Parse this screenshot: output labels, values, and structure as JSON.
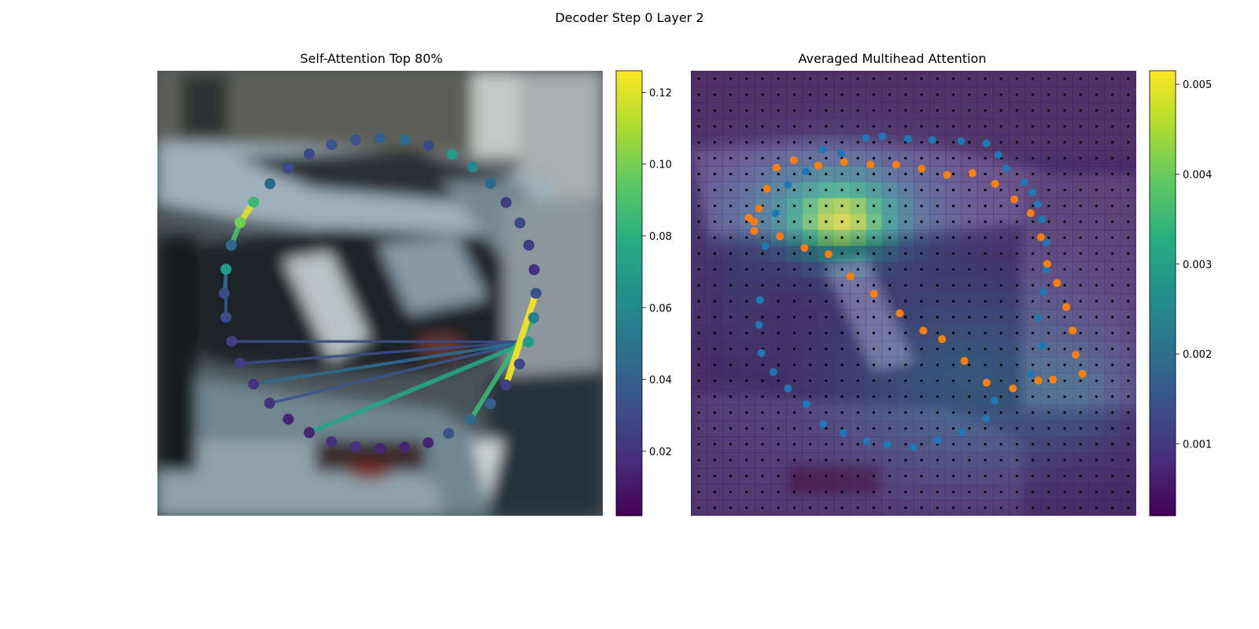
{
  "figure": {
    "title": "Decoder Step 0 Layer 2"
  },
  "chart_data": [
    {
      "type": "scatter",
      "title": "Self-Attention Top 80%",
      "background": "blurred photo of parked cars",
      "colormap": "viridis",
      "colorbar": {
        "min": 0.002,
        "max": 0.126,
        "ticks": [
          0.02,
          0.04,
          0.06,
          0.08,
          0.1,
          0.12
        ],
        "tick_labels": [
          "0.02",
          "0.04",
          "0.06",
          "0.08",
          "0.10",
          "0.12"
        ]
      },
      "axes": {
        "x_range": [
          0,
          1
        ],
        "y_range": [
          0,
          1
        ],
        "axis_visible": false
      },
      "points": [
        {
          "x": 0.5,
          "y": 0.151,
          "v": 0.04
        },
        {
          "x": 0.556,
          "y": 0.155,
          "v": 0.045
        },
        {
          "x": 0.609,
          "y": 0.168,
          "v": 0.03
        },
        {
          "x": 0.662,
          "y": 0.188,
          "v": 0.07
        },
        {
          "x": 0.708,
          "y": 0.216,
          "v": 0.06
        },
        {
          "x": 0.748,
          "y": 0.253,
          "v": 0.045
        },
        {
          "x": 0.783,
          "y": 0.296,
          "v": 0.025
        },
        {
          "x": 0.814,
          "y": 0.342,
          "v": 0.03
        },
        {
          "x": 0.834,
          "y": 0.392,
          "v": 0.025
        },
        {
          "x": 0.846,
          "y": 0.447,
          "v": 0.02
        },
        {
          "x": 0.85,
          "y": 0.5,
          "v": 0.035
        },
        {
          "x": 0.845,
          "y": 0.555,
          "v": 0.055
        },
        {
          "x": 0.833,
          "y": 0.609,
          "v": 0.07
        },
        {
          "x": 0.813,
          "y": 0.659,
          "v": 0.03
        },
        {
          "x": 0.783,
          "y": 0.706,
          "v": 0.025
        },
        {
          "x": 0.748,
          "y": 0.748,
          "v": 0.04
        },
        {
          "x": 0.703,
          "y": 0.784,
          "v": 0.045
        },
        {
          "x": 0.654,
          "y": 0.815,
          "v": 0.035
        },
        {
          "x": 0.608,
          "y": 0.836,
          "v": 0.015
        },
        {
          "x": 0.555,
          "y": 0.846,
          "v": 0.015
        },
        {
          "x": 0.5,
          "y": 0.848,
          "v": 0.015
        },
        {
          "x": 0.445,
          "y": 0.845,
          "v": 0.02
        },
        {
          "x": 0.391,
          "y": 0.834,
          "v": 0.02
        },
        {
          "x": 0.341,
          "y": 0.813,
          "v": 0.015
        },
        {
          "x": 0.294,
          "y": 0.783,
          "v": 0.015
        },
        {
          "x": 0.252,
          "y": 0.747,
          "v": 0.02
        },
        {
          "x": 0.216,
          "y": 0.704,
          "v": 0.02
        },
        {
          "x": 0.186,
          "y": 0.658,
          "v": 0.025
        },
        {
          "x": 0.167,
          "y": 0.608,
          "v": 0.025
        },
        {
          "x": 0.154,
          "y": 0.554,
          "v": 0.03
        },
        {
          "x": 0.15,
          "y": 0.5,
          "v": 0.03
        },
        {
          "x": 0.154,
          "y": 0.446,
          "v": 0.07
        },
        {
          "x": 0.166,
          "y": 0.392,
          "v": 0.045
        },
        {
          "x": 0.186,
          "y": 0.341,
          "v": 0.1
        },
        {
          "x": 0.216,
          "y": 0.295,
          "v": 0.085
        },
        {
          "x": 0.253,
          "y": 0.254,
          "v": 0.045
        },
        {
          "x": 0.293,
          "y": 0.218,
          "v": 0.03
        },
        {
          "x": 0.341,
          "y": 0.187,
          "v": 0.03
        },
        {
          "x": 0.391,
          "y": 0.166,
          "v": 0.035
        },
        {
          "x": 0.445,
          "y": 0.155,
          "v": 0.035
        }
      ],
      "links": [
        {
          "from": 10,
          "to": 14,
          "v": 0.125
        },
        {
          "from": 11,
          "to": 16,
          "v": 0.085
        },
        {
          "from": 12,
          "to": 23,
          "v": 0.075
        },
        {
          "from": 12,
          "to": 26,
          "v": 0.045
        },
        {
          "from": 12,
          "to": 25,
          "v": 0.035
        },
        {
          "from": 12,
          "to": 27,
          "v": 0.03
        },
        {
          "from": 12,
          "to": 28,
          "v": 0.03
        },
        {
          "from": 33,
          "to": 34,
          "v": 0.12
        },
        {
          "from": 33,
          "to": 32,
          "v": 0.09
        },
        {
          "from": 31,
          "to": 30,
          "v": 0.045
        },
        {
          "from": 31,
          "to": 29,
          "v": 0.04
        }
      ]
    },
    {
      "type": "heatmap",
      "title": "Averaged Multihead Attention",
      "background": "blurred photo of parked cars",
      "colormap": "viridis",
      "colorbar": {
        "min": 0.0002,
        "max": 0.00515,
        "ticks": [
          0.001,
          0.002,
          0.003,
          0.004,
          0.005
        ],
        "tick_labels": [
          "0.001",
          "0.002",
          "0.003",
          "0.004",
          "0.005"
        ]
      },
      "grid": {
        "rows": 28,
        "cols": 28
      },
      "hotspots": [
        {
          "cx": 0.34,
          "cy": 0.34,
          "rx": 0.11,
          "ry": 0.08,
          "a": 0.0031
        },
        {
          "cx": 0.3,
          "cy": 0.3,
          "rx": 0.22,
          "ry": 0.12,
          "a": 0.0016
        },
        {
          "cx": 0.64,
          "cy": 0.7,
          "rx": 0.3,
          "ry": 0.2,
          "a": 0.0011
        },
        {
          "cx": 0.88,
          "cy": 0.72,
          "rx": 0.1,
          "ry": 0.1,
          "a": 0.0006
        },
        {
          "cx": 0.1,
          "cy": 0.52,
          "rx": 0.08,
          "ry": 0.18,
          "a": 0.0003
        },
        {
          "cx": 0.5,
          "cy": 0.52,
          "rx": 0.5,
          "ry": 0.4,
          "a": 0.0004
        }
      ],
      "series": [
        {
          "color": "#1f77b4",
          "points": [
            [
              0.43,
              0.147
            ],
            [
              0.488,
              0.153
            ],
            [
              0.542,
              0.155
            ],
            [
              0.607,
              0.158
            ],
            [
              0.663,
              0.163
            ],
            [
              0.69,
              0.189
            ],
            [
              0.708,
              0.219
            ],
            [
              0.749,
              0.25
            ],
            [
              0.767,
              0.273
            ],
            [
              0.779,
              0.3
            ],
            [
              0.788,
              0.334
            ],
            [
              0.798,
              0.386
            ],
            [
              0.798,
              0.446
            ],
            [
              0.791,
              0.497
            ],
            [
              0.78,
              0.555
            ],
            [
              0.79,
              0.618
            ],
            [
              0.763,
              0.681
            ],
            [
              0.724,
              0.714
            ],
            [
              0.682,
              0.741
            ],
            [
              0.663,
              0.782
            ],
            [
              0.609,
              0.812
            ],
            [
              0.554,
              0.83
            ],
            [
              0.499,
              0.845
            ],
            [
              0.441,
              0.84
            ],
            [
              0.395,
              0.832
            ],
            [
              0.342,
              0.814
            ],
            [
              0.297,
              0.794
            ],
            [
              0.26,
              0.749
            ],
            [
              0.218,
              0.714
            ],
            [
              0.185,
              0.677
            ],
            [
              0.158,
              0.634
            ],
            [
              0.153,
              0.571
            ],
            [
              0.155,
              0.515
            ],
            [
              0.167,
              0.394
            ],
            [
              0.19,
              0.32
            ],
            [
              0.218,
              0.256
            ],
            [
              0.258,
              0.226
            ],
            [
              0.296,
              0.177
            ],
            [
              0.337,
              0.185
            ],
            [
              0.393,
              0.151
            ]
          ]
        },
        {
          "color": "#ff7f0e",
          "points": [
            [
              0.153,
              0.309
            ],
            [
              0.171,
              0.265
            ],
            [
              0.192,
              0.218
            ],
            [
              0.231,
              0.201
            ],
            [
              0.286,
              0.213
            ],
            [
              0.344,
              0.205
            ],
            [
              0.403,
              0.211
            ],
            [
              0.461,
              0.211
            ],
            [
              0.518,
              0.22
            ],
            [
              0.575,
              0.234
            ],
            [
              0.632,
              0.23
            ],
            [
              0.683,
              0.254
            ],
            [
              0.726,
              0.289
            ],
            [
              0.763,
              0.32
            ],
            [
              0.786,
              0.374
            ],
            [
              0.8,
              0.434
            ],
            [
              0.822,
              0.477
            ],
            [
              0.843,
              0.531
            ],
            [
              0.857,
              0.584
            ],
            [
              0.864,
              0.638
            ],
            [
              0.879,
              0.681
            ],
            [
              0.813,
              0.694
            ],
            [
              0.78,
              0.696
            ],
            [
              0.723,
              0.714
            ],
            [
              0.664,
              0.701
            ],
            [
              0.614,
              0.652
            ],
            [
              0.564,
              0.603
            ],
            [
              0.522,
              0.584
            ],
            [
              0.469,
              0.545
            ],
            [
              0.411,
              0.501
            ],
            [
              0.358,
              0.462
            ],
            [
              0.309,
              0.412
            ],
            [
              0.255,
              0.398
            ],
            [
              0.2,
              0.372
            ],
            [
              0.142,
              0.36
            ],
            [
              0.142,
              0.339
            ],
            [
              0.13,
              0.33
            ]
          ]
        }
      ]
    }
  ]
}
